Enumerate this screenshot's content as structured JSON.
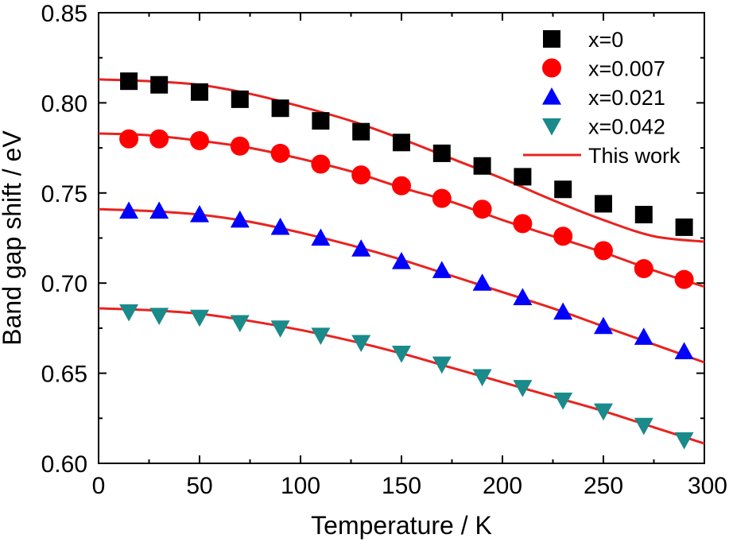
{
  "chart_data": {
    "type": "scatter",
    "title": "",
    "xlabel": "Temperature  /  K",
    "ylabel": "Band gap shift  /  eV",
    "xlim": [
      0,
      300
    ],
    "ylim": [
      0.6,
      0.85
    ],
    "x_ticks": [
      "0",
      "50",
      "100",
      "150",
      "200",
      "250",
      "300"
    ],
    "y_ticks": [
      "0.60",
      "0.65",
      "0.70",
      "0.75",
      "0.80",
      "0.85"
    ],
    "grid": false,
    "legend_position": "top-right",
    "series": [
      {
        "name": "x=0",
        "marker": "square",
        "color": "#000000",
        "x": [
          15,
          30,
          50,
          70,
          90,
          110,
          130,
          150,
          170,
          190,
          210,
          230,
          250,
          270,
          290
        ],
        "y": [
          0.812,
          0.81,
          0.806,
          0.802,
          0.797,
          0.79,
          0.784,
          0.778,
          0.772,
          0.765,
          0.759,
          0.752,
          0.744,
          0.738,
          0.731
        ]
      },
      {
        "name": "x=0.007",
        "marker": "circle",
        "color": "#ff0000",
        "x": [
          15,
          30,
          50,
          70,
          90,
          110,
          130,
          150,
          170,
          190,
          210,
          230,
          250,
          270,
          290
        ],
        "y": [
          0.78,
          0.78,
          0.779,
          0.776,
          0.772,
          0.766,
          0.76,
          0.754,
          0.747,
          0.741,
          0.733,
          0.726,
          0.718,
          0.708,
          0.702
        ]
      },
      {
        "name": "x=0.021",
        "marker": "triangle-up",
        "color": "#0000ff",
        "x": [
          15,
          30,
          50,
          70,
          90,
          110,
          130,
          150,
          170,
          190,
          210,
          230,
          250,
          270,
          290
        ],
        "y": [
          0.74,
          0.74,
          0.738,
          0.735,
          0.731,
          0.725,
          0.719,
          0.712,
          0.707,
          0.7,
          0.692,
          0.684,
          0.676,
          0.67,
          0.662
        ]
      },
      {
        "name": "x=0.042",
        "marker": "triangle-down",
        "color": "#1a8a8a",
        "x": [
          15,
          30,
          50,
          70,
          90,
          110,
          130,
          150,
          170,
          190,
          210,
          230,
          250,
          270,
          290
        ],
        "y": [
          0.684,
          0.682,
          0.681,
          0.678,
          0.675,
          0.671,
          0.667,
          0.661,
          0.655,
          0.648,
          0.642,
          0.635,
          0.629,
          0.621,
          0.613
        ]
      },
      {
        "name": "This work",
        "line": true,
        "color": "#e8231f",
        "curves": [
          {
            "x": [
              0,
              25,
              50,
              75,
              100,
              125,
              150,
              175,
              200,
              225,
              250,
              275,
              300
            ],
            "y": [
              0.813,
              0.812,
              0.81,
              0.805,
              0.798,
              0.79,
              0.78,
              0.769,
              0.758,
              0.746,
              0.735,
              0.726,
              0.723
            ]
          },
          {
            "x": [
              0,
              25,
              50,
              75,
              100,
              125,
              150,
              175,
              200,
              225,
              250,
              275,
              300
            ],
            "y": [
              0.783,
              0.782,
              0.779,
              0.775,
              0.769,
              0.762,
              0.753,
              0.745,
              0.735,
              0.726,
              0.717,
              0.707,
              0.698
            ]
          },
          {
            "x": [
              0,
              25,
              50,
              75,
              100,
              125,
              150,
              175,
              200,
              225,
              250,
              275,
              300
            ],
            "y": [
              0.741,
              0.74,
              0.738,
              0.734,
              0.728,
              0.721,
              0.713,
              0.704,
              0.695,
              0.686,
              0.676,
              0.666,
              0.656
            ]
          },
          {
            "x": [
              0,
              25,
              50,
              75,
              100,
              125,
              150,
              175,
              200,
              225,
              250,
              275,
              300
            ],
            "y": [
              0.686,
              0.685,
              0.683,
              0.679,
              0.674,
              0.668,
              0.661,
              0.653,
              0.645,
              0.637,
              0.629,
              0.62,
              0.611
            ]
          }
        ]
      }
    ]
  }
}
